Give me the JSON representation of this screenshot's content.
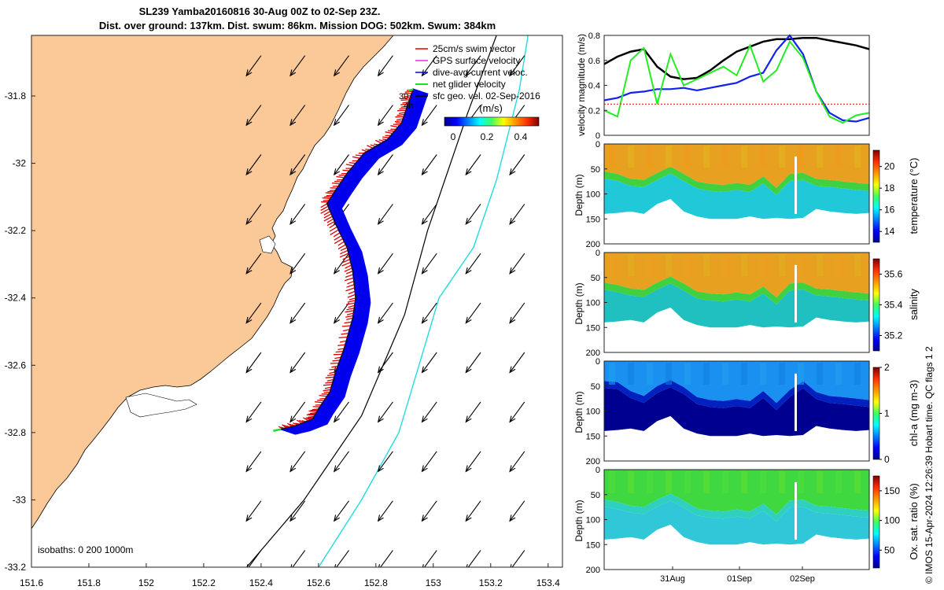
{
  "title": {
    "line1": "SL239 Yamba20160816 30-Aug 00Z to 02-Sep 23Z.",
    "line2": "Dist. over ground: 137km. Dist. swum: 86km. Mission DOG: 502km. Swum: 384km"
  },
  "credit": "© IMOS 15-Apr-2024 12:26:39 Hobart time. QC flags 1  2",
  "colors": {
    "land": "#fbc898",
    "swim": "#dd0000",
    "dive_avg": "#0000ee",
    "net": "#22dd22",
    "gps": "#ee22ee",
    "sfc": "#000000",
    "isobath_200": "#000000",
    "isobath_1000": "#22dddd"
  },
  "chart_data": [
    {
      "type": "map",
      "xticks": [
        "151.6",
        "151.8",
        "152",
        "152.2",
        "152.4",
        "152.6",
        "152.8",
        "153",
        "153.2",
        "153.4"
      ],
      "yticks": [
        "-31.8",
        "-32",
        "-32.2",
        "-32.4",
        "-32.6",
        "-32.8",
        "-33",
        "-33.2"
      ],
      "xlim": [
        151.6,
        153.45
      ],
      "ylim": [
        -33.2,
        -31.62
      ],
      "legend": [
        "25cm/s swim vector",
        "GPS surface velocity",
        "dive-avg current veloc.",
        "net glider velocity",
        "sfc geo. vel. 02-Sep-2016"
      ],
      "colorbar": {
        "label": "(m/s)",
        "ticks": [
          "0",
          "0.2",
          "0.4"
        ],
        "range": [
          0,
          0.5
        ]
      },
      "track_labels": [
        "30",
        "4h"
      ],
      "isobaths_label": "isobaths: 0   200  1000m",
      "glider_track": [
        [
          152.93,
          -31.78
        ],
        [
          152.91,
          -31.83
        ],
        [
          152.89,
          -31.88
        ],
        [
          152.84,
          -31.93
        ],
        [
          152.76,
          -31.97
        ],
        [
          152.7,
          -32.03
        ],
        [
          152.66,
          -32.08
        ],
        [
          152.63,
          -32.12
        ],
        [
          152.66,
          -32.18
        ],
        [
          152.7,
          -32.25
        ],
        [
          152.72,
          -32.32
        ],
        [
          152.73,
          -32.4
        ],
        [
          152.72,
          -32.46
        ],
        [
          152.69,
          -32.55
        ],
        [
          152.66,
          -32.62
        ],
        [
          152.64,
          -32.68
        ],
        [
          152.6,
          -32.73
        ],
        [
          152.58,
          -32.76
        ],
        [
          152.52,
          -32.78
        ],
        [
          152.47,
          -32.79
        ]
      ],
      "isobath_200": [
        [
          152.35,
          -33.2
        ],
        [
          152.55,
          -33.0
        ],
        [
          152.75,
          -32.75
        ],
        [
          152.9,
          -32.45
        ],
        [
          152.98,
          -32.2
        ],
        [
          153.04,
          -32.05
        ],
        [
          153.12,
          -31.85
        ],
        [
          153.22,
          -31.62
        ]
      ],
      "isobath_1000": [
        [
          152.6,
          -33.2
        ],
        [
          152.75,
          -33.0
        ],
        [
          152.88,
          -32.8
        ],
        [
          152.95,
          -32.6
        ],
        [
          153.02,
          -32.4
        ],
        [
          153.14,
          -32.25
        ],
        [
          153.22,
          -32.05
        ],
        [
          153.3,
          -31.78
        ],
        [
          153.33,
          -31.62
        ]
      ],
      "current_vector_dir": [
        -0.55,
        -0.75
      ]
    },
    {
      "type": "line",
      "ylabel": "velocity magnitude (m/s)",
      "ylim": [
        0,
        0.8
      ],
      "yticks": [
        "0",
        "0.2",
        "0.4",
        "0.6",
        "0.8"
      ],
      "x": [
        0,
        5,
        10,
        15,
        20,
        25,
        30,
        35,
        40,
        45,
        50,
        55,
        60,
        65,
        70,
        75,
        80,
        85,
        90,
        95,
        100
      ],
      "series": [
        {
          "values": [
            0.57,
            0.63,
            0.67,
            0.69,
            0.55,
            0.47,
            0.45,
            0.46,
            0.52,
            0.6,
            0.67,
            0.71,
            0.75,
            0.77,
            0.77,
            0.78,
            0.78,
            0.76,
            0.74,
            0.72,
            0.69
          ]
        },
        {
          "values": [
            0.28,
            0.3,
            0.34,
            0.35,
            0.37,
            0.37,
            0.38,
            0.36,
            0.38,
            0.4,
            0.42,
            0.47,
            0.5,
            0.68,
            0.8,
            0.65,
            0.35,
            0.18,
            0.12,
            0.11,
            0.14
          ]
        },
        {
          "values": [
            0.2,
            0.15,
            0.6,
            0.7,
            0.25,
            0.65,
            0.4,
            0.45,
            0.5,
            0.55,
            0.48,
            0.72,
            0.43,
            0.52,
            0.75,
            0.62,
            0.35,
            0.15,
            0.1,
            0.16,
            0.18
          ]
        },
        {
          "values": [
            0.25,
            0.25,
            0.25,
            0.25,
            0.25,
            0.25,
            0.25,
            0.25,
            0.25,
            0.25,
            0.25,
            0.25,
            0.25,
            0.25,
            0.25,
            0.25,
            0.25,
            0.25,
            0.25,
            0.25,
            0.25
          ]
        }
      ]
    },
    {
      "type": "heatmap",
      "ylabel": "Depth (m)",
      "yticks": [
        "0",
        "50",
        "100",
        "150",
        "200"
      ],
      "colorbar": {
        "label": "temperature (°C)",
        "ticks": [
          "14",
          "16",
          "18",
          "20"
        ],
        "range": [
          13,
          21.5
        ]
      },
      "mld_profile": [
        55,
        60,
        70,
        72,
        58,
        45,
        60,
        75,
        80,
        82,
        78,
        82,
        65,
        88,
        60,
        58,
        70,
        72,
        75,
        78,
        80
      ],
      "max_depth_profile": [
        140,
        138,
        135,
        140,
        120,
        110,
        135,
        145,
        150,
        150,
        150,
        145,
        150,
        148,
        150,
        148,
        130,
        135,
        138,
        140,
        138
      ]
    },
    {
      "type": "heatmap",
      "ylabel": "Depth (m)",
      "yticks": [
        "0",
        "50",
        "100",
        "150",
        "200"
      ],
      "colorbar": {
        "label": "salinity",
        "ticks": [
          "35.2",
          "35.4",
          "35.6"
        ],
        "range": [
          35.1,
          35.7
        ]
      },
      "mld_profile": [
        60,
        65,
        72,
        75,
        60,
        48,
        62,
        78,
        82,
        84,
        80,
        84,
        68,
        90,
        62,
        60,
        72,
        74,
        77,
        80,
        82
      ],
      "max_depth_profile": [
        140,
        138,
        135,
        140,
        120,
        110,
        135,
        145,
        150,
        150,
        150,
        145,
        150,
        148,
        150,
        148,
        130,
        135,
        138,
        140,
        138
      ]
    },
    {
      "type": "heatmap",
      "ylabel": "Depth (m)",
      "yticks": [
        "0",
        "50",
        "100",
        "150",
        "200"
      ],
      "colorbar": {
        "label": "chl-a (mg m-3)",
        "ticks": [
          "0",
          "1",
          "2"
        ],
        "range": [
          0,
          2
        ]
      },
      "mld_profile": [
        40,
        42,
        60,
        70,
        50,
        38,
        52,
        72,
        78,
        80,
        76,
        80,
        60,
        84,
        58,
        40,
        62,
        70,
        72,
        75,
        78
      ],
      "max_depth_profile": [
        140,
        138,
        135,
        140,
        120,
        110,
        135,
        145,
        150,
        150,
        150,
        145,
        150,
        148,
        150,
        148,
        130,
        135,
        138,
        140,
        138
      ]
    },
    {
      "type": "heatmap",
      "ylabel": "Depth (m)",
      "yticks": [
        "0",
        "50",
        "100",
        "150",
        "200"
      ],
      "xticks": [
        "31Aug",
        "01Sep",
        "02Sep"
      ],
      "colorbar": {
        "label": "Ox. sat. ratio (%)",
        "ticks": [
          "50",
          "100",
          "150"
        ],
        "range": [
          20,
          175
        ]
      },
      "mld_profile": [
        60,
        65,
        72,
        75,
        60,
        48,
        62,
        78,
        82,
        84,
        80,
        84,
        68,
        90,
        62,
        60,
        72,
        74,
        77,
        80,
        82
      ],
      "max_depth_profile": [
        140,
        138,
        135,
        140,
        120,
        110,
        135,
        145,
        150,
        150,
        150,
        145,
        150,
        148,
        150,
        148,
        130,
        135,
        138,
        140,
        138
      ]
    }
  ]
}
